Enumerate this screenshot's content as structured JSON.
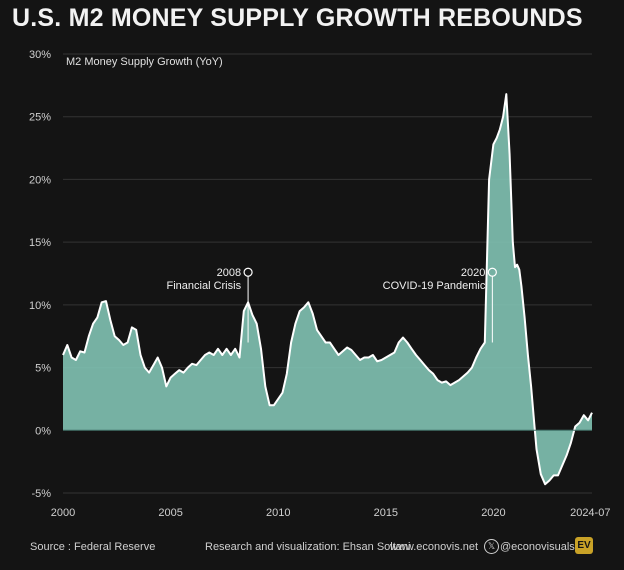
{
  "header": {
    "title": "U.S. M2 MONEY SUPPLY GROWTH REBOUNDS"
  },
  "footer": {
    "source": "Source : Federal Reserve",
    "credit": "Research and visualization: Ehsan Soltani",
    "website": "www.econovis.net",
    "social_handle": "@econovisuals",
    "logo_text": "EV"
  },
  "colors": {
    "background": "#141414",
    "area_fill": "#7fbfb0",
    "line": "#ffffff",
    "grid": "#333333"
  },
  "chart_data": {
    "type": "area",
    "title": "U.S. M2 MONEY SUPPLY GROWTH REBOUNDS",
    "series_label": "M2 Money Supply Growth (YoY)",
    "xlabel": "",
    "ylabel": "",
    "xlim": [
      2000.0,
      2024.58
    ],
    "ylim": [
      -5,
      30
    ],
    "x_ticks": [
      {
        "value": 2000,
        "label": "2000"
      },
      {
        "value": 2005,
        "label": "2005"
      },
      {
        "value": 2010,
        "label": "2010"
      },
      {
        "value": 2015,
        "label": "2015"
      },
      {
        "value": 2020,
        "label": "2020"
      },
      {
        "value": 2024.5,
        "label": "2024-07"
      }
    ],
    "y_ticks": [
      {
        "value": -5,
        "label": "-5%"
      },
      {
        "value": 0,
        "label": "0%"
      },
      {
        "value": 5,
        "label": "5%"
      },
      {
        "value": 10,
        "label": "10%"
      },
      {
        "value": 15,
        "label": "15%"
      },
      {
        "value": 20,
        "label": "20%"
      },
      {
        "value": 25,
        "label": "25%"
      },
      {
        "value": 30,
        "label": "30%"
      }
    ],
    "grid": true,
    "annotations": [
      {
        "x": 2008.6,
        "y": 12.6,
        "label_top": "2008",
        "label_bottom": "Financial Crisis",
        "stem_to": 7
      },
      {
        "x": 2019.95,
        "y": 12.6,
        "label_top": "2020",
        "label_bottom": "COVID-19 Pandemic",
        "stem_to": 7
      }
    ],
    "series": [
      {
        "name": "M2 Money Supply Growth (YoY)",
        "x": [
          2000.0,
          2000.2,
          2000.4,
          2000.6,
          2000.8,
          2001.0,
          2001.2,
          2001.4,
          2001.6,
          2001.8,
          2002.0,
          2002.2,
          2002.4,
          2002.6,
          2002.8,
          2003.0,
          2003.2,
          2003.4,
          2003.6,
          2003.8,
          2004.0,
          2004.2,
          2004.4,
          2004.6,
          2004.8,
          2005.0,
          2005.2,
          2005.4,
          2005.6,
          2005.8,
          2006.0,
          2006.2,
          2006.4,
          2006.6,
          2006.8,
          2007.0,
          2007.2,
          2007.4,
          2007.6,
          2007.8,
          2008.0,
          2008.2,
          2008.4,
          2008.6,
          2008.8,
          2009.0,
          2009.2,
          2009.4,
          2009.6,
          2009.8,
          2010.0,
          2010.2,
          2010.4,
          2010.6,
          2010.8,
          2011.0,
          2011.2,
          2011.4,
          2011.6,
          2011.8,
          2012.0,
          2012.2,
          2012.4,
          2012.6,
          2012.8,
          2013.0,
          2013.2,
          2013.4,
          2013.6,
          2013.8,
          2014.0,
          2014.2,
          2014.4,
          2014.6,
          2014.8,
          2015.0,
          2015.2,
          2015.4,
          2015.6,
          2015.8,
          2016.0,
          2016.2,
          2016.4,
          2016.6,
          2016.8,
          2017.0,
          2017.2,
          2017.4,
          2017.6,
          2017.8,
          2018.0,
          2018.2,
          2018.4,
          2018.6,
          2018.8,
          2019.0,
          2019.2,
          2019.4,
          2019.6,
          2019.8,
          2020.0,
          2020.15,
          2020.3,
          2020.45,
          2020.6,
          2020.75,
          2020.9,
          2021.0,
          2021.1,
          2021.2,
          2021.3,
          2021.45,
          2021.6,
          2021.75,
          2021.9,
          2022.0,
          2022.2,
          2022.4,
          2022.6,
          2022.8,
          2023.0,
          2023.2,
          2023.4,
          2023.6,
          2023.8,
          2024.0,
          2024.2,
          2024.4,
          2024.58
        ],
        "values": [
          6.0,
          6.8,
          5.8,
          5.6,
          6.3,
          6.2,
          7.5,
          8.5,
          9.0,
          10.2,
          10.3,
          8.8,
          7.5,
          7.2,
          6.8,
          7.0,
          8.2,
          8.0,
          6.0,
          5.0,
          4.6,
          5.2,
          5.8,
          5.0,
          3.5,
          4.2,
          4.5,
          4.8,
          4.6,
          5.0,
          5.3,
          5.2,
          5.6,
          6.0,
          6.2,
          6.0,
          6.5,
          6.0,
          6.5,
          6.0,
          6.5,
          5.8,
          9.5,
          10.2,
          9.2,
          8.5,
          6.5,
          3.5,
          2.0,
          2.0,
          2.5,
          3.0,
          4.5,
          7.0,
          8.5,
          9.5,
          9.8,
          10.2,
          9.3,
          8.0,
          7.5,
          7.0,
          7.0,
          6.5,
          6.0,
          6.3,
          6.6,
          6.4,
          6.0,
          5.6,
          5.8,
          5.8,
          6.0,
          5.5,
          5.6,
          5.8,
          6.0,
          6.2,
          7.0,
          7.4,
          7.0,
          6.5,
          6.0,
          5.6,
          5.2,
          4.8,
          4.5,
          4.0,
          3.8,
          3.9,
          3.6,
          3.8,
          4.0,
          4.3,
          4.6,
          5.0,
          5.8,
          6.5,
          7.0,
          20.0,
          22.8,
          23.3,
          24.0,
          25.0,
          26.8,
          22.0,
          15.0,
          13.0,
          13.2,
          12.8,
          11.5,
          9.0,
          6.0,
          3.5,
          0.5,
          -1.5,
          -3.5,
          -4.3,
          -4.0,
          -3.6,
          -3.6,
          -2.8,
          -2.0,
          -1.0,
          0.3,
          0.6,
          1.2,
          0.8,
          1.4
        ]
      }
    ]
  }
}
